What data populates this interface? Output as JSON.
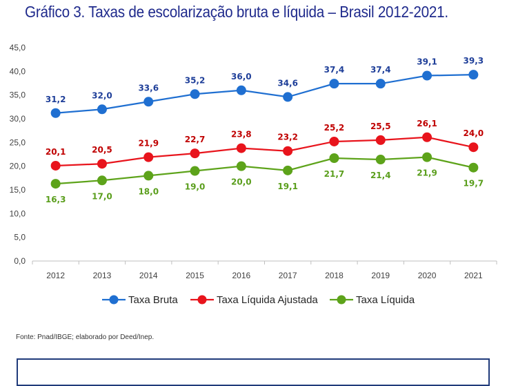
{
  "page": {
    "title": "Gráfico 3. Taxas de escolarização bruta e líquida – Brasil 2012-2021.",
    "source": "Fonte: Pnad/IBGE; elaborado por Deed/Inep."
  },
  "chart_data": {
    "type": "line",
    "title": "Gráfico 3. Taxas de escolarização bruta e líquida – Brasil 2012-2021.",
    "xlabel": "",
    "ylabel": "",
    "x": [
      "2012",
      "2013",
      "2014",
      "2015",
      "2016",
      "2017",
      "2018",
      "2019",
      "2020",
      "2021"
    ],
    "ylim": [
      0,
      45
    ],
    "yticks": [
      "0,0",
      "5,0",
      "10,0",
      "15,0",
      "20,0",
      "25,0",
      "30,0",
      "35,0",
      "40,0",
      "45,0"
    ],
    "grid": false,
    "legend": "bottom",
    "series": [
      {
        "name": "Taxa Bruta",
        "color": "#1f6fd1",
        "values": [
          31.2,
          32.0,
          33.6,
          35.2,
          36.0,
          34.6,
          37.4,
          37.4,
          39.1,
          39.3
        ],
        "labels": [
          "31,2",
          "32,0",
          "33,6",
          "35,2",
          "36,0",
          "34,6",
          "37,4",
          "37,4",
          "39,1",
          "39,3"
        ],
        "label_color": "#1f3f99",
        "label_position": "above"
      },
      {
        "name": "Taxa Líquida Ajustada",
        "color": "#e8141c",
        "values": [
          20.1,
          20.5,
          21.9,
          22.7,
          23.8,
          23.2,
          25.2,
          25.5,
          26.1,
          24.0
        ],
        "labels": [
          "20,1",
          "20,5",
          "21,9",
          "22,7",
          "23,8",
          "23,2",
          "25,2",
          "25,5",
          "26,1",
          "24,0"
        ],
        "label_color": "#c00000",
        "label_position": "above"
      },
      {
        "name": "Taxa Líquida",
        "color": "#5da31a",
        "values": [
          16.3,
          17.0,
          18.0,
          19.0,
          20.0,
          19.1,
          21.7,
          21.4,
          21.9,
          19.7
        ],
        "labels": [
          "16,3",
          "17,0",
          "18,0",
          "19,0",
          "20,0",
          "19,1",
          "21,7",
          "21,4",
          "21,9",
          "19,7"
        ],
        "label_color": "#5a9e1c",
        "label_position": "below"
      }
    ]
  }
}
